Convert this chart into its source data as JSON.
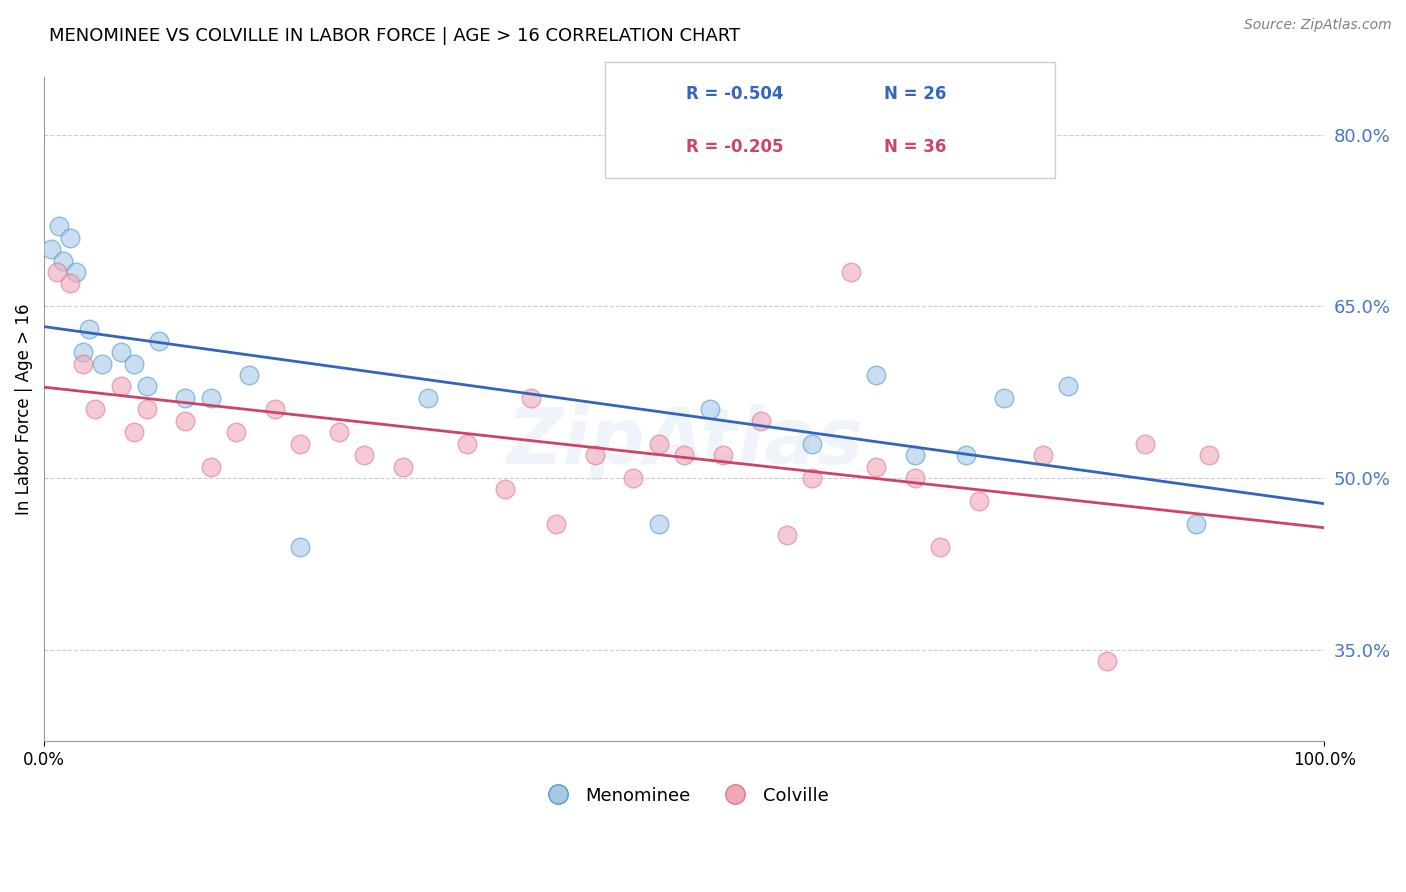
{
  "title": "MENOMINEE VS COLVILLE IN LABOR FORCE | AGE > 16 CORRELATION CHART",
  "source": "Source: ZipAtlas.com",
  "ylabel": "In Labor Force | Age > 16",
  "xlim": [
    0,
    100
  ],
  "ylim": [
    27,
    85
  ],
  "yticks": [
    35.0,
    50.0,
    65.0,
    80.0
  ],
  "menominee_R": "-0.504",
  "menominee_N": "26",
  "colville_R": "-0.205",
  "colville_N": "36",
  "blue_scatter_color": "#a8c8e8",
  "blue_edge_color": "#5599cc",
  "pink_scatter_color": "#f0a8b8",
  "pink_edge_color": "#dd7799",
  "blue_line_color": "#3366bb",
  "pink_line_color": "#cc4466",
  "legend_label_blue": "Menominee",
  "legend_label_pink": "Colville",
  "menominee_x": [
    0.5,
    1.2,
    1.5,
    2.0,
    2.5,
    3.0,
    3.5,
    4.5,
    6,
    7,
    8,
    9,
    11,
    13,
    16,
    20,
    30,
    48,
    52,
    60,
    65,
    68,
    72,
    75,
    80,
    90
  ],
  "menominee_y": [
    70,
    72,
    69,
    71,
    68,
    61,
    63,
    60,
    61,
    60,
    58,
    62,
    57,
    57,
    59,
    44,
    57,
    46,
    56,
    53,
    59,
    52,
    52,
    57,
    58,
    46
  ],
  "colville_x": [
    1,
    2,
    3,
    4,
    6,
    7,
    8,
    11,
    13,
    15,
    18,
    20,
    23,
    25,
    28,
    33,
    36,
    38,
    40,
    43,
    46,
    48,
    50,
    53,
    56,
    58,
    60,
    63,
    65,
    68,
    70,
    73,
    78,
    83,
    86,
    91
  ],
  "colville_y": [
    68,
    67,
    60,
    56,
    58,
    54,
    56,
    55,
    51,
    54,
    56,
    53,
    54,
    52,
    51,
    53,
    49,
    57,
    46,
    52,
    50,
    53,
    52,
    52,
    55,
    45,
    50,
    68,
    51,
    50,
    44,
    48,
    52,
    34,
    53,
    52
  ]
}
